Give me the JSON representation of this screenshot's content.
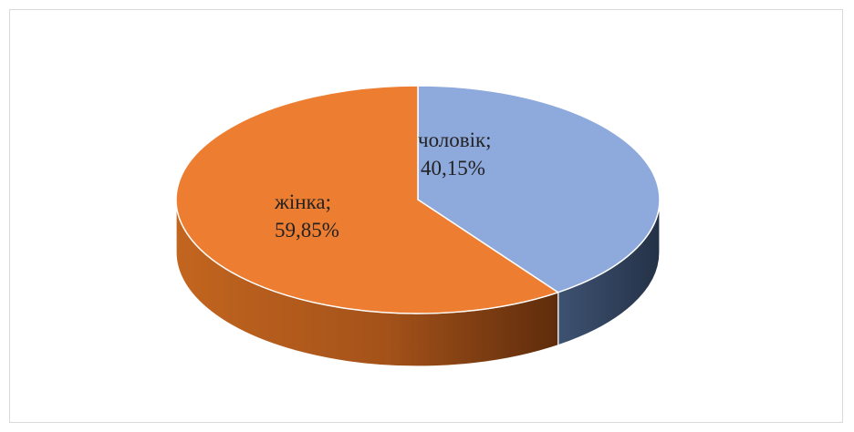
{
  "chart_data": {
    "type": "pie",
    "style": "3d",
    "title": "",
    "legend": "none",
    "slices": [
      {
        "label": "чоловік",
        "label_line1": "чоловік;",
        "label_line2": "40,15%",
        "value": 40.15,
        "color": "#8EA9DB",
        "side_color": "#2E3D55"
      },
      {
        "label": "жінка",
        "label_line1": "жінка;",
        "label_line2": "59,85%",
        "value": 59.85,
        "color": "#ED7D31",
        "side_color": "#A04F18"
      }
    ]
  }
}
